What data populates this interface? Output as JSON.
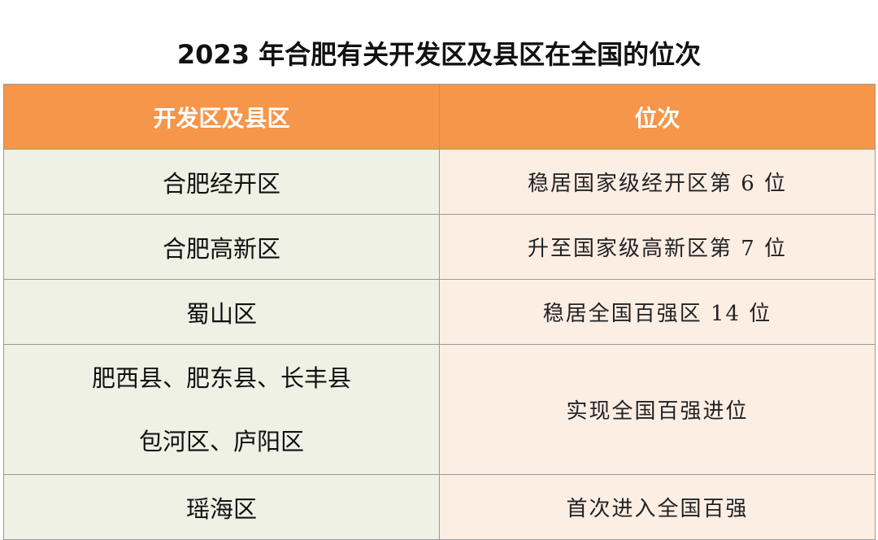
{
  "header": {
    "title": "2023 年合肥有关开发区及县区在全国的位次"
  },
  "table": {
    "columns": [
      "开发区及县区",
      "位次"
    ],
    "rows": [
      [
        "合肥经开区",
        "稳居国家级经开区第 6 位"
      ],
      [
        "合肥高新区",
        "升至国家级高新区第 7 位"
      ],
      [
        "蜀山区",
        "稳居全国百强区 14 位"
      ],
      [
        [
          "肥西县、肥东县、长丰县",
          "包河区、庐阳区"
        ],
        "实现全国百强进位"
      ],
      [
        "瑶海区",
        "首次进入全国百强"
      ]
    ]
  }
}
